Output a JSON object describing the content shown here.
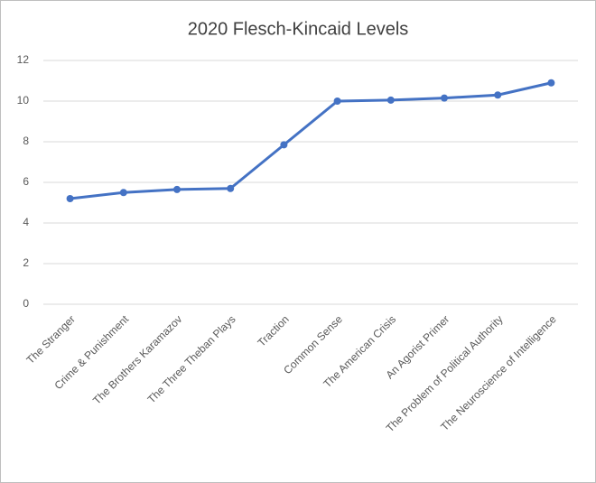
{
  "chart_data": {
    "type": "line",
    "title": "2020 Flesch-Kincaid Levels",
    "categories": [
      "The Stranger",
      "Crime & Punishment",
      "The Brothers Karamazov",
      "The Three Theban Plays",
      "Traction",
      "Common Sense",
      "The American Crisis",
      "An Agorist Primer",
      "The Problem of Political Authority",
      "The Neuroscience of Intelligence"
    ],
    "values": [
      5.2,
      5.5,
      5.65,
      5.7,
      7.85,
      10.0,
      10.05,
      10.15,
      10.3,
      10.9
    ],
    "color": "#4472c4",
    "ylim": [
      0,
      12
    ],
    "yticks": [
      0,
      2,
      4,
      6,
      8,
      10,
      12
    ],
    "grid": true
  }
}
